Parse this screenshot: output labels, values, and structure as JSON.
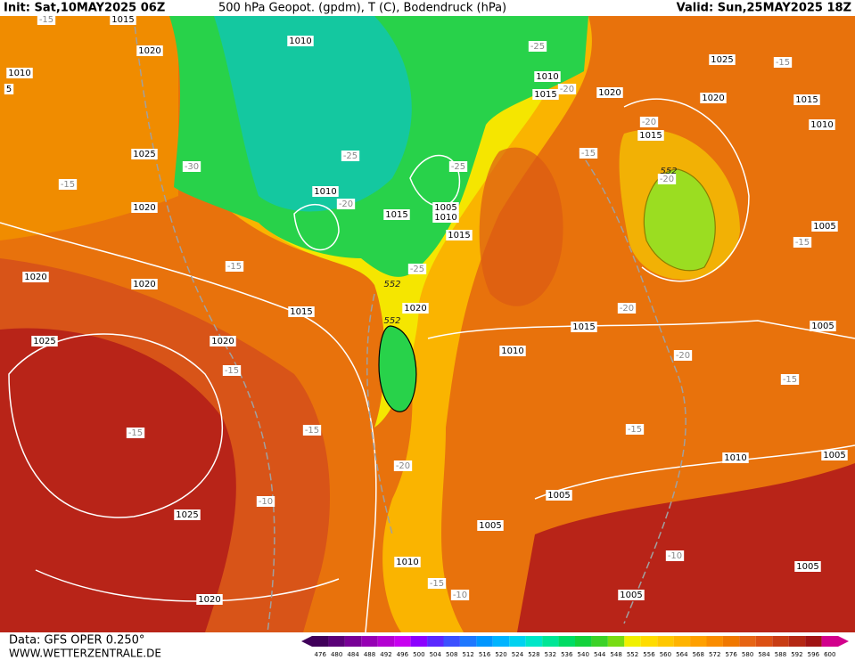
{
  "header": {
    "init": "Init: Sat,10MAY2025 06Z",
    "title": "500 hPa Geopot. (gpdm), T (C), Bodendruck (hPa)",
    "valid": "Valid: Sun,25MAY2025 18Z"
  },
  "footer": {
    "source": "Data: GFS OPER 0.250°",
    "website": "WWW.WETTERZENTRALE.DE"
  },
  "colorbar": {
    "values": [
      476,
      480,
      484,
      488,
      492,
      496,
      500,
      504,
      508,
      512,
      516,
      520,
      524,
      528,
      532,
      536,
      540,
      544,
      548,
      552,
      556,
      560,
      564,
      568,
      572,
      576,
      580,
      584,
      588,
      592,
      596,
      600
    ],
    "colors": [
      "#40005a",
      "#5a0078",
      "#780096",
      "#9600b4",
      "#b400d2",
      "#c800f0",
      "#8c00ff",
      "#5a28ff",
      "#3c50ff",
      "#1e78ff",
      "#0096ff",
      "#00b4ff",
      "#00d2f0",
      "#00e6c8",
      "#00e696",
      "#00dc64",
      "#14d23c",
      "#3cd228",
      "#78dc14",
      "#f0f000",
      "#ffdc00",
      "#ffc800",
      "#ffb400",
      "#ffa000",
      "#fa8c00",
      "#f07800",
      "#e66414",
      "#dc5014",
      "#c83c14",
      "#b42814",
      "#a01414",
      "#d2008c"
    ]
  },
  "isobar_labels": [
    1015,
    1020,
    1010,
    5,
    1010,
    1010,
    1015,
    1020,
    1025,
    1020,
    1015,
    1010,
    1015,
    1025,
    1020,
    1010,
    1015,
    1005,
    1010,
    1015,
    1005,
    1020,
    1020,
    1015,
    1020,
    1015,
    1005,
    1025,
    1020,
    1010,
    1010,
    1005,
    1005,
    1005,
    1025,
    1010,
    1005,
    1020,
    1005
  ],
  "temperature_labels": [
    -15,
    -25,
    -20,
    -20,
    -15,
    -30,
    -25,
    -25,
    -20,
    -15,
    -15,
    -20,
    -15,
    -15,
    -25,
    -20,
    -20,
    -15,
    -15,
    -15,
    -15,
    -15,
    -20,
    -10,
    -10,
    -15,
    -10
  ],
  "geopotential_labels": [
    552,
    552,
    552
  ]
}
